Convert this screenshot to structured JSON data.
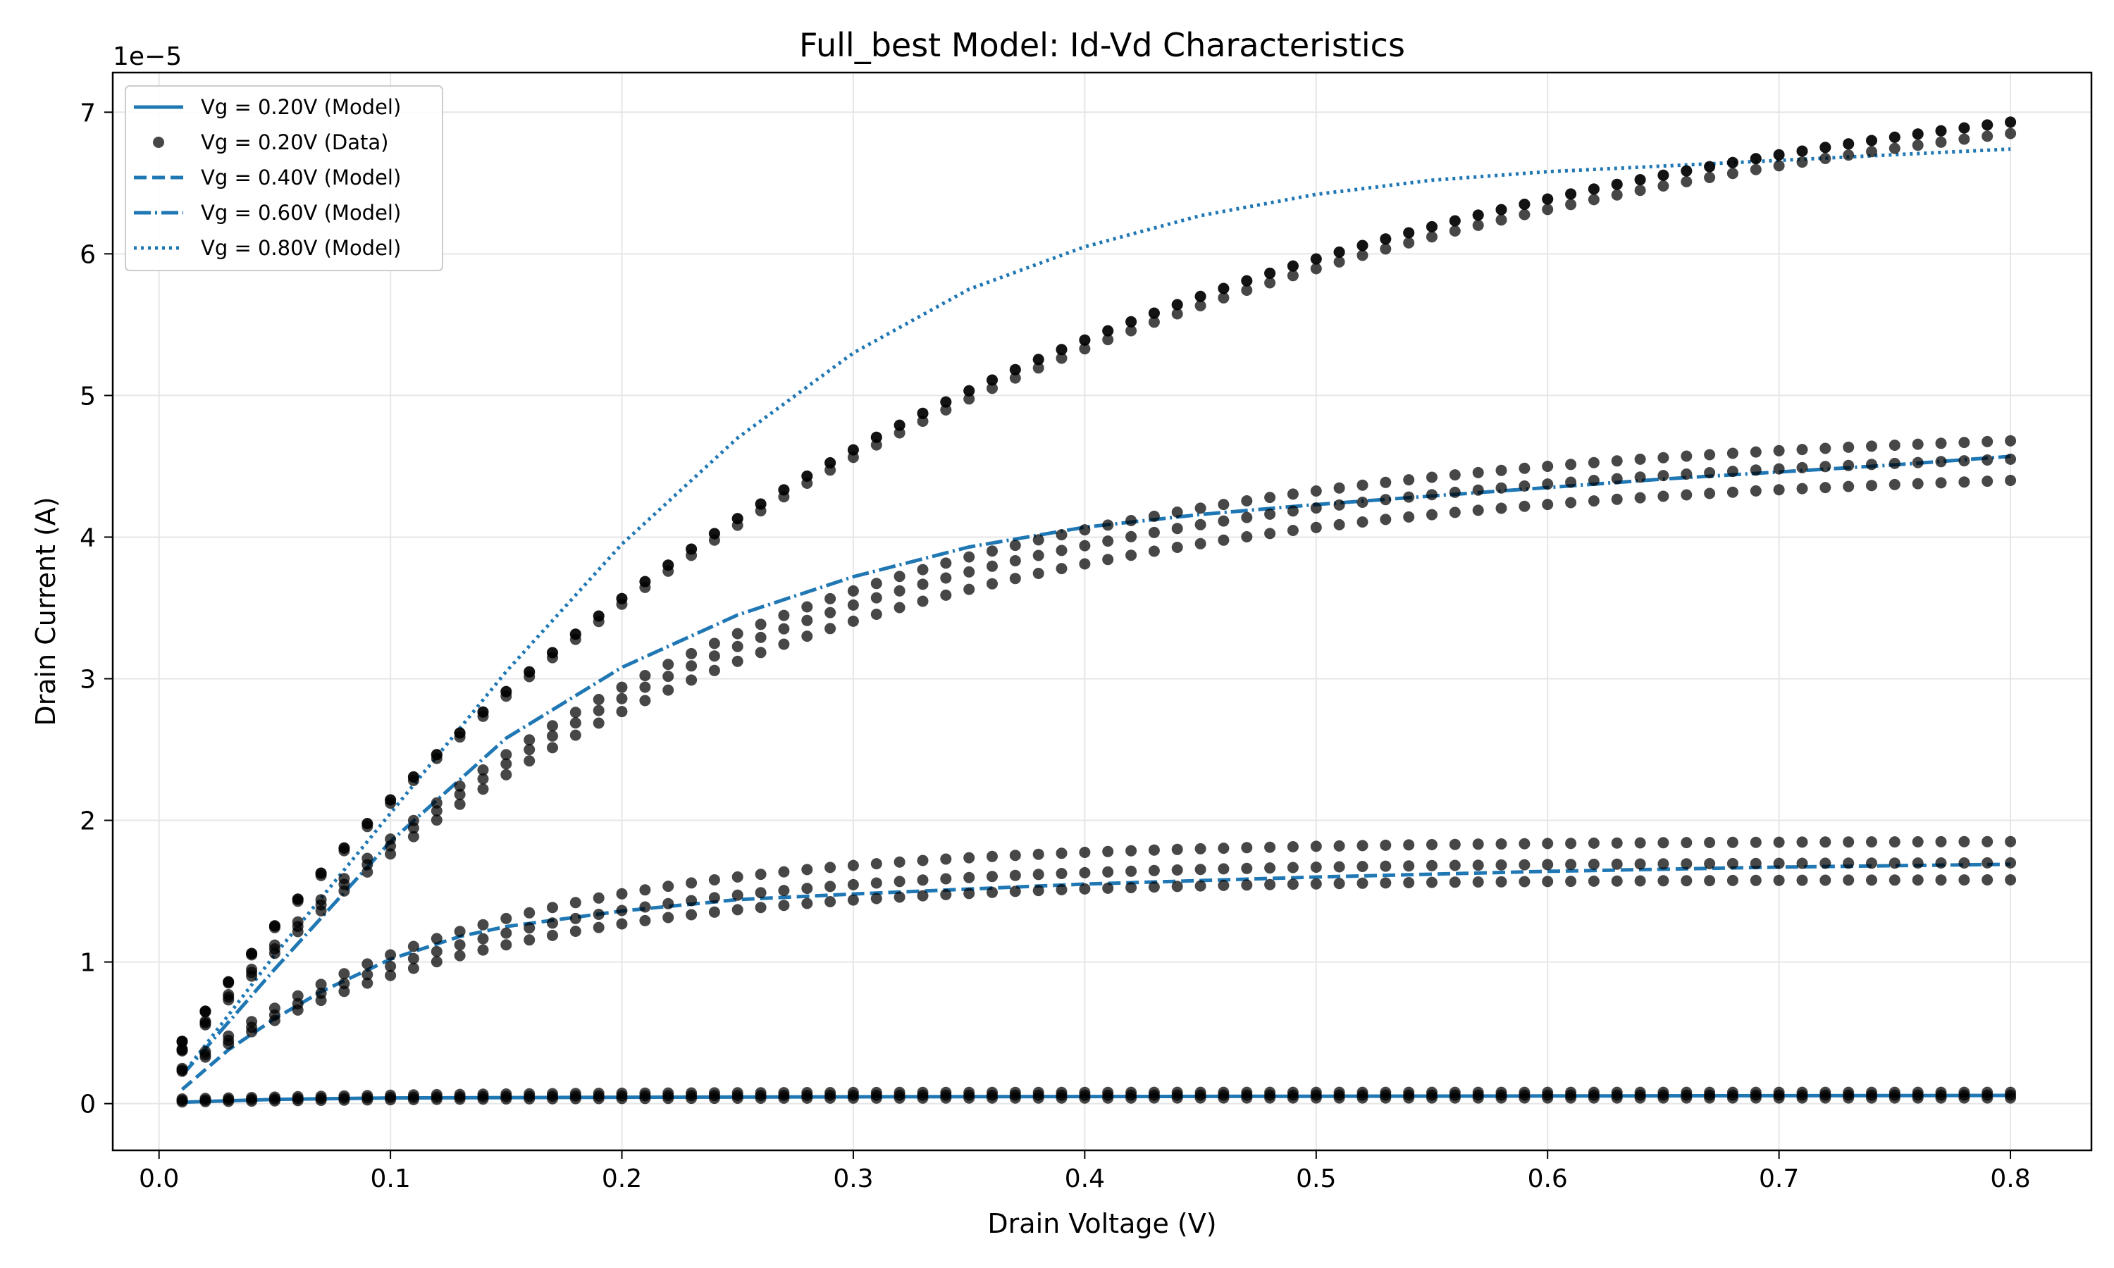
{
  "chart_data": {
    "type": "line",
    "title": "Full_best Model: Id-Vd Characteristics",
    "xlabel": "Drain Voltage (V)",
    "ylabel": "Drain Current (A)",
    "y_offset_label": "1e−5",
    "xlim": [
      -0.02,
      0.835
    ],
    "ylim": [
      -0.33,
      7.28
    ],
    "x_ticks": [
      "0.0",
      "0.1",
      "0.2",
      "0.3",
      "0.4",
      "0.5",
      "0.6",
      "0.7",
      "0.8"
    ],
    "x_tick_values": [
      0,
      0.1,
      0.2,
      0.3,
      0.4,
      0.5,
      0.6,
      0.7,
      0.8
    ],
    "y_ticks": [
      "0",
      "1",
      "2",
      "3",
      "4",
      "5",
      "6",
      "7"
    ],
    "y_tick_values": [
      0,
      1,
      2,
      3,
      4,
      5,
      6,
      7
    ],
    "y_unit_scale": "1e-5",
    "grid": true,
    "legend_position": "top-left",
    "legend": [
      {
        "label": "Vg = 0.20V (Model)",
        "style": "solid",
        "marker": "line"
      },
      {
        "label": "Vg = 0.20V (Data)",
        "style": "none",
        "marker": "dot"
      },
      {
        "label": "Vg = 0.40V (Model)",
        "style": "dashed",
        "marker": "line"
      },
      {
        "label": "Vg = 0.60V (Model)",
        "style": "dashdot",
        "marker": "line"
      },
      {
        "label": "Vg = 0.80V (Model)",
        "style": "dotted",
        "marker": "line"
      }
    ],
    "model_color": "#1f77b4",
    "data_color": "#000000",
    "model_series": [
      {
        "name": "Vg = 0.20V (Model)",
        "style": "solid",
        "x": [
          0.01,
          0.05,
          0.1,
          0.2,
          0.3,
          0.4,
          0.5,
          0.6,
          0.7,
          0.8
        ],
        "y": [
          0.01,
          0.03,
          0.04,
          0.045,
          0.048,
          0.05,
          0.052,
          0.054,
          0.056,
          0.058
        ]
      },
      {
        "name": "Vg = 0.40V (Model)",
        "style": "dashed",
        "x": [
          0.01,
          0.03,
          0.05,
          0.07,
          0.1,
          0.13,
          0.15,
          0.2,
          0.25,
          0.3,
          0.4,
          0.5,
          0.6,
          0.7,
          0.8
        ],
        "y": [
          0.1,
          0.38,
          0.6,
          0.79,
          1.02,
          1.18,
          1.25,
          1.36,
          1.44,
          1.48,
          1.55,
          1.6,
          1.64,
          1.67,
          1.69
        ]
      },
      {
        "name": "Vg = 0.60V (Model)",
        "style": "dashdot",
        "x": [
          0.01,
          0.05,
          0.1,
          0.15,
          0.2,
          0.25,
          0.3,
          0.35,
          0.4,
          0.45,
          0.5,
          0.55,
          0.6,
          0.65,
          0.7,
          0.75,
          0.8
        ],
        "y": [
          0.2,
          0.95,
          1.85,
          2.58,
          3.08,
          3.45,
          3.72,
          3.93,
          4.07,
          4.16,
          4.23,
          4.29,
          4.35,
          4.41,
          4.46,
          4.51,
          4.57
        ]
      },
      {
        "name": "Vg = 0.80V (Model)",
        "style": "dotted",
        "x": [
          0.01,
          0.05,
          0.1,
          0.15,
          0.2,
          0.25,
          0.3,
          0.35,
          0.4,
          0.45,
          0.5,
          0.55,
          0.6,
          0.65,
          0.7,
          0.75,
          0.8
        ],
        "y": [
          0.2,
          1.05,
          2.05,
          3.05,
          3.95,
          4.7,
          5.3,
          5.75,
          6.05,
          6.27,
          6.42,
          6.52,
          6.58,
          6.62,
          6.66,
          6.7,
          6.74
        ]
      }
    ],
    "data_series": [
      {
        "name": "Vg = 0.20V",
        "x_start": 0.01,
        "x_end": 0.8,
        "x_step": 0.01,
        "y_start": [
          0.01,
          0.02,
          0.03
        ],
        "y_end": [
          0.04,
          0.06,
          0.08
        ],
        "knee": 0.15,
        "shape": "soft"
      },
      {
        "name": "Vg = 0.40V",
        "x_start": 0.01,
        "x_end": 0.8,
        "x_step": 0.01,
        "y_start": [
          0.12,
          0.12,
          0.12
        ],
        "y_end": [
          1.58,
          1.7,
          1.85
        ],
        "knee": 0.13,
        "shape": "sat"
      },
      {
        "name": "Vg = 0.60V",
        "x_start": 0.01,
        "x_end": 0.8,
        "x_step": 0.01,
        "y_start": [
          0.18,
          0.18,
          0.18
        ],
        "y_end": [
          4.4,
          4.55,
          4.68
        ],
        "knee": 0.22,
        "shape": "sat"
      },
      {
        "name": "Vg = 0.80V",
        "x_start": 0.01,
        "x_end": 0.8,
        "x_step": 0.01,
        "y_start": [
          0.22,
          0.22,
          0.22
        ],
        "y_end": [
          6.85,
          6.93,
          6.93
        ],
        "knee": 0.33,
        "shape": "sat"
      }
    ]
  }
}
